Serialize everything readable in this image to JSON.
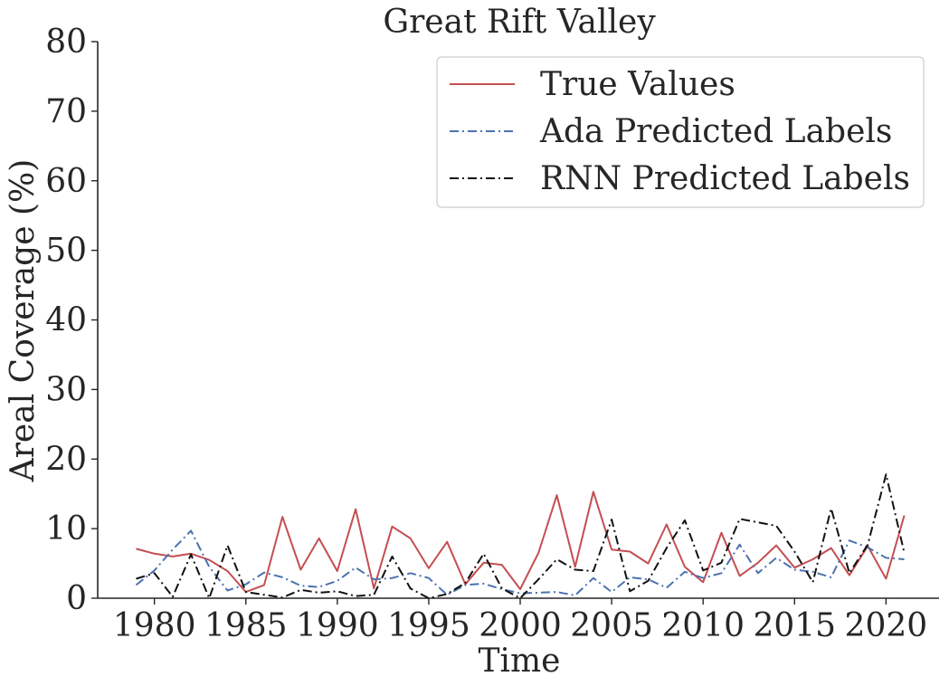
{
  "chart_data": {
    "type": "line",
    "title": "Great Rift Valley",
    "xlabel": "Time",
    "ylabel": "Areal Coverage (%)",
    "xlim": [
      1976.9,
      2022.9
    ],
    "ylim": [
      0,
      80
    ],
    "xticks": [
      1980,
      1985,
      1990,
      1995,
      2000,
      2005,
      2010,
      2015,
      2020
    ],
    "yticks": [
      0,
      10,
      20,
      30,
      40,
      50,
      60,
      70,
      80
    ],
    "grid": false,
    "legend_position": "top-right",
    "x": [
      1979,
      1980,
      1981,
      1982,
      1983,
      1984,
      1985,
      1986,
      1987,
      1988,
      1989,
      1990,
      1991,
      1992,
      1993,
      1994,
      1995,
      1996,
      1997,
      1998,
      1999,
      2000,
      2001,
      2002,
      2003,
      2004,
      2005,
      2006,
      2007,
      2008,
      2009,
      2010,
      2011,
      2012,
      2013,
      2014,
      2015,
      2016,
      2017,
      2018,
      2019,
      2020,
      2021
    ],
    "series": [
      {
        "name": "True Values",
        "color": "#c44e52",
        "dash": "solid",
        "values": [
          7.1,
          6.4,
          6.0,
          6.4,
          5.5,
          3.9,
          0.9,
          1.9,
          11.7,
          4.1,
          8.6,
          3.9,
          12.8,
          1.4,
          10.3,
          8.6,
          4.3,
          8.1,
          2.0,
          5.1,
          4.8,
          1.3,
          6.5,
          14.8,
          4.5,
          15.3,
          7.0,
          6.7,
          5.0,
          10.6,
          4.5,
          2.3,
          9.4,
          3.2,
          5.1,
          7.6,
          4.4,
          5.6,
          7.2,
          3.3,
          7.5,
          2.8,
          11.9
        ]
      },
      {
        "name": "Ada Predicted Labels",
        "color": "#4c72b0",
        "dash": "dashdot",
        "values": [
          1.9,
          4.0,
          7.0,
          9.7,
          4.5,
          1.1,
          2.0,
          3.7,
          3.0,
          1.8,
          1.6,
          2.5,
          4.4,
          2.7,
          2.9,
          3.6,
          2.9,
          0.5,
          1.9,
          2.1,
          1.3,
          0.7,
          0.8,
          0.9,
          0.4,
          2.9,
          0.9,
          3.0,
          2.7,
          1.5,
          3.8,
          2.9,
          3.6,
          7.7,
          3.6,
          5.8,
          4.1,
          3.8,
          3.0,
          8.3,
          7.3,
          5.8,
          5.6
        ]
      },
      {
        "name": "RNN Predicted Labels",
        "color": "#111111",
        "dash": "dashdot",
        "values": [
          2.8,
          3.6,
          0.2,
          6.3,
          0.0,
          7.6,
          0.9,
          0.5,
          0.1,
          1.2,
          0.8,
          1.0,
          0.3,
          0.5,
          6.0,
          1.4,
          0.0,
          0.6,
          2.2,
          6.4,
          1.4,
          0.0,
          2.7,
          5.6,
          4.1,
          3.9,
          11.3,
          1.0,
          2.5,
          7.2,
          11.2,
          4.0,
          5.1,
          11.4,
          10.9,
          10.4,
          6.7,
          2.3,
          12.9,
          3.6,
          7.7,
          17.8,
          6.5
        ]
      }
    ]
  }
}
